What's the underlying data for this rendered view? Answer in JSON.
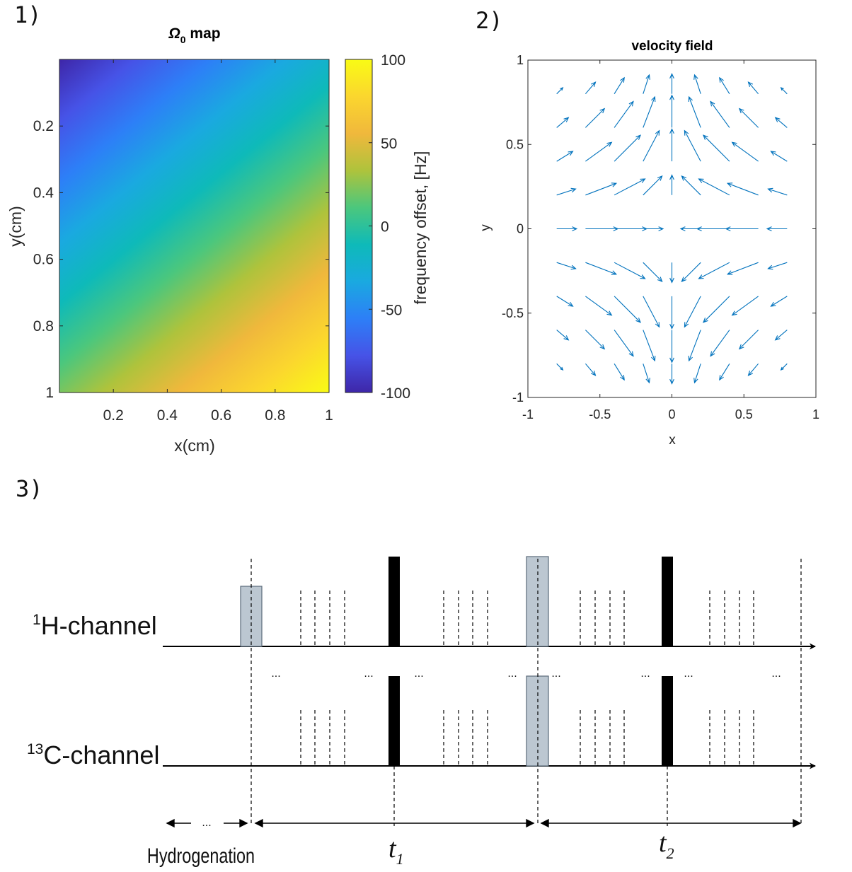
{
  "panels": {
    "p1": "1)",
    "p2": "2)",
    "p3": "3)"
  },
  "chart_data": [
    {
      "type": "heatmap",
      "title": "Ω",
      "title_sub": "0",
      "title_suffix": " map",
      "xlabel": "x(cm)",
      "ylabel": "y(cm)",
      "xlim": [
        0,
        1
      ],
      "ylim": [
        0,
        1
      ],
      "y_reversed": true,
      "x_ticks": [
        0.2,
        0.4,
        0.6,
        0.8,
        1
      ],
      "x_tick_labels": [
        "0.2",
        "0.4",
        "0.6",
        "0.8",
        "1"
      ],
      "y_ticks": [
        0.2,
        0.4,
        0.6,
        0.8,
        1
      ],
      "y_tick_labels": [
        "0.2",
        "0.4",
        "0.6",
        "0.8",
        "1"
      ],
      "value_model": "offset = -100 + 100*x + 100*y (Hz), approximately linear gradient",
      "corner_values": {
        "x0_y0": -100,
        "x1_y0": 0,
        "x0_y1": 0,
        "x1_y1": 100
      },
      "colorbar": {
        "label": "frequency offset, [Hz]",
        "range": [
          -100,
          100
        ],
        "ticks": [
          100,
          50,
          0,
          -50,
          -100
        ],
        "tick_labels": [
          "100",
          "50",
          "0",
          "-50",
          "-100"
        ],
        "colormap": [
          "#3e26a8",
          "#4653e7",
          "#2d7ff7",
          "#1aa9e0",
          "#0ebab9",
          "#4bc77d",
          "#aec33c",
          "#f0b83c",
          "#fbd62e",
          "#f9fb15"
        ]
      }
    },
    {
      "type": "quiver",
      "title": "velocity field",
      "xlabel": "x",
      "ylabel": "y",
      "xlim": [
        -1,
        1
      ],
      "ylim": [
        -1,
        1
      ],
      "x_ticks": [
        -1,
        -0.5,
        0,
        0.5,
        1
      ],
      "x_tick_labels": [
        "-1",
        "-0.5",
        "0",
        "0.5",
        "1"
      ],
      "y_ticks": [
        1,
        0.5,
        0,
        -0.5,
        -1
      ],
      "y_tick_labels": [
        "1",
        "0.5",
        "0",
        "-0.5",
        "-1"
      ],
      "grid_step": 0.2,
      "field_model": "u = -sin(pi*x)*cos(pi*y/2), v = cos(pi*x/2)*sin(pi*y)",
      "arrow_color": "#0072bd"
    }
  ],
  "sequence": {
    "channels": [
      {
        "sup": "1",
        "name": "H-channel"
      },
      {
        "sup": "13",
        "name": "C-channel"
      }
    ],
    "ellipsis": "...",
    "hydrogenation_label": "Hydrogenation",
    "t1_label": "t",
    "t1_sub": "1",
    "t2_label": "t",
    "t2_sub": "2",
    "colors": {
      "soft_pulse": "#bcc7d1",
      "hard_pulse": "#000000"
    }
  }
}
